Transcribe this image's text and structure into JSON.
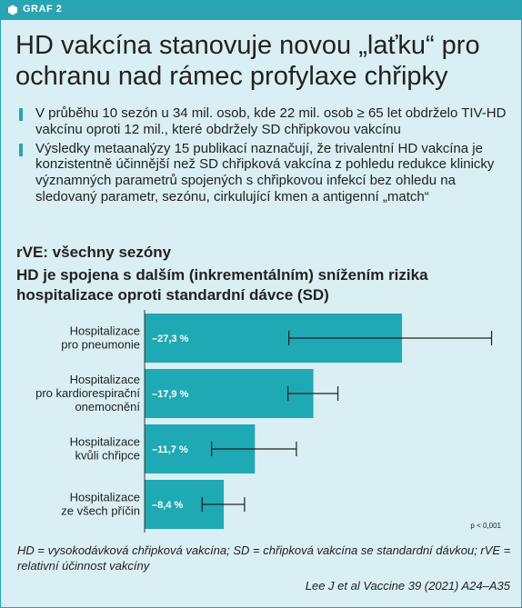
{
  "tag": {
    "label": "GRAF 2"
  },
  "headline": "HD vakcína stanovuje novou „laťku“ pro ochranu nad rámec profylaxe chřipky",
  "bullets": [
    "V průběhu 10 sezón u 34 mil. osob, kde 22 mil. osob ≥ 65 let obdrželo TIV-HD vakcínu oproti 12 mil., které obdržely SD chřipkovou vakcínu",
    "Výsledky metaanalýzy 15 publikací naznačují, že trivalentní HD vakcína je konzistentně účinnější než SD chřipková vakcína z pohledu redukce klinicky významných parametrů spojených s chřipkovou infekcí bez ohledu na sledovaný parametr, sezónu, cirkulující kmen a antigenní „match“"
  ],
  "subtitle1": "rVE: všechny sezóny",
  "subtitle2": "HD je spojena s dalším (inkrementálním) snížením rizika hospitalizace oproti standardní dávce (SD)",
  "colors": {
    "accent": "#2aa4b0",
    "bar": "#1fa9b4",
    "background": "#d9eff3"
  },
  "chart_data": {
    "type": "bar",
    "orientation": "horizontal",
    "categories": [
      [
        "Hospitalizace",
        "pro pneumonie"
      ],
      [
        "Hospitalizace",
        "pro kardiorespirační",
        "onemocnění"
      ],
      [
        "Hospitalizace",
        "kvůli chřipce"
      ],
      [
        "Hospitalizace",
        "ze všech příčin"
      ]
    ],
    "values": [
      27.3,
      17.9,
      11.7,
      8.4
    ],
    "labels": [
      "–27,3 %",
      "–17,9 %",
      "–11,7 %",
      "–8,4 %"
    ],
    "ci": [
      [
        15.3,
        36.8
      ],
      [
        15.2,
        20.5
      ],
      [
        7.1,
        16.1
      ],
      [
        6.1,
        10.6
      ]
    ],
    "xlim": [
      0,
      38
    ],
    "note": "p < 0,001",
    "grid": false
  },
  "footnote": "HD = vysokodávková chřipková vakcína; SD = chřipková vakcína se standardní dávkou; rVE = relativní účinnost vakcíny",
  "citation": "Lee J et al Vaccine 39 (2021) A24–A35"
}
